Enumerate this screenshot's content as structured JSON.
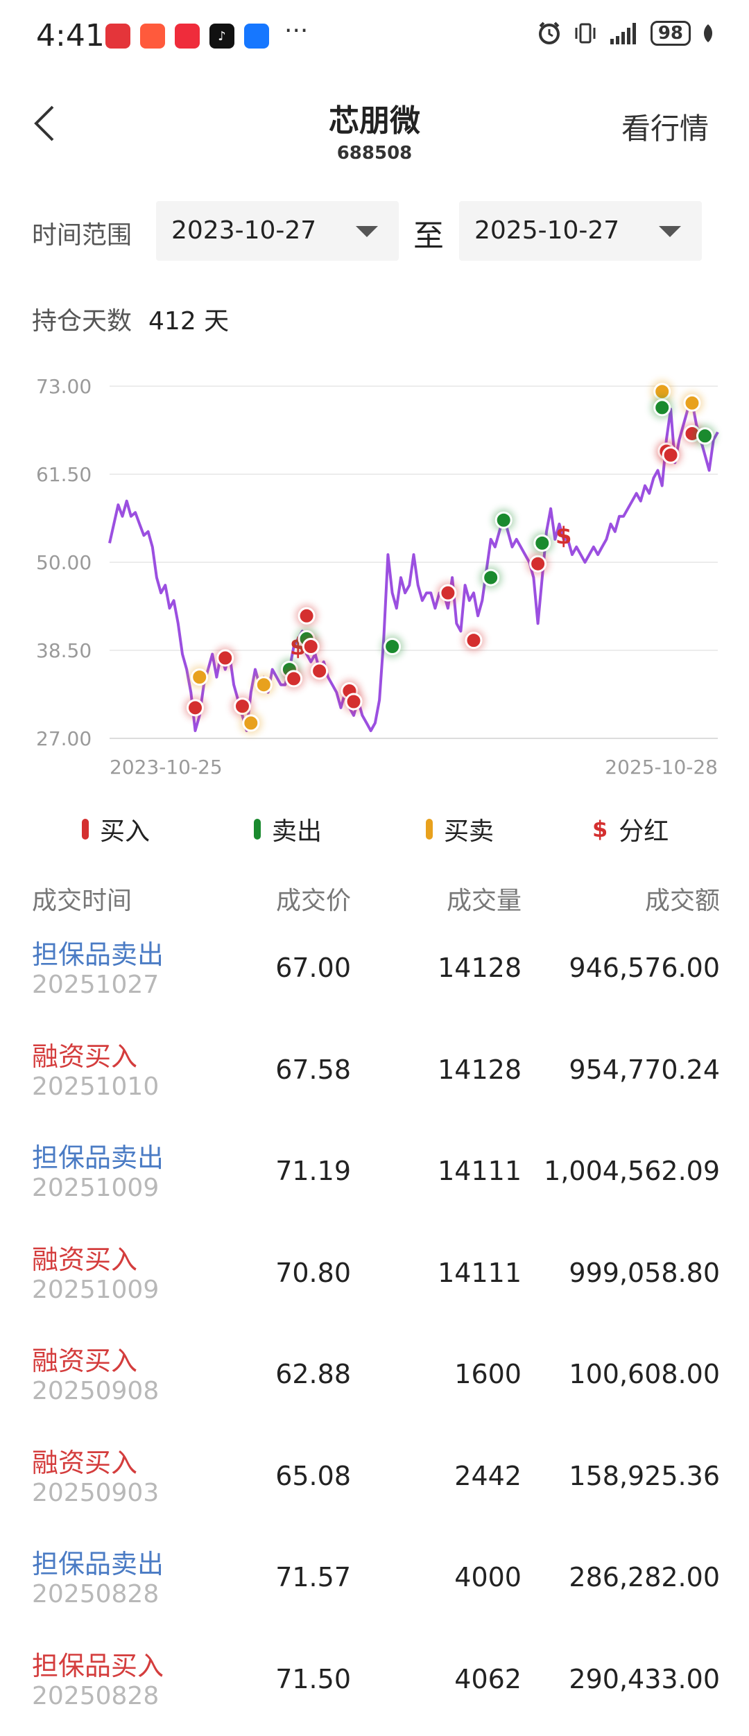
{
  "status_bar": {
    "time": "4:41",
    "battery": "98",
    "app_icons": [
      "huawei-appgallery-icon",
      "game-center-icon",
      "redbook-icon",
      "tiktok-icon",
      "alipay-icon"
    ],
    "more": "···"
  },
  "header": {
    "title": "芯朋微",
    "code": "688508",
    "market_link": "看行情"
  },
  "range": {
    "label": "时间范围",
    "start": "2023-10-27",
    "separator": "至",
    "end": "2025-10-27"
  },
  "holding": {
    "label": "持仓天数",
    "value": "412 天"
  },
  "chart_data": {
    "type": "line",
    "y_ticks": [
      "73.00",
      "61.50",
      "50.00",
      "38.50",
      "27.00"
    ],
    "ylim": [
      27.0,
      73.0
    ],
    "x_tick_labels": [
      "2023-10-25",
      "2025-10-28"
    ],
    "grid": true,
    "line_color": "#9b4fe0",
    "series": [
      {
        "values": [
          52.5,
          55,
          57.5,
          56,
          58,
          56,
          56.5,
          55,
          53.5,
          54,
          52,
          48,
          46,
          47,
          44,
          45,
          42,
          38,
          36,
          33,
          28,
          30,
          34,
          36,
          38,
          35,
          38,
          36,
          38,
          34,
          32,
          30,
          28,
          33,
          36,
          34,
          35,
          33,
          36,
          35,
          34,
          34,
          36,
          39,
          40,
          41,
          38,
          37,
          38,
          36,
          37,
          35,
          34,
          33,
          31,
          33,
          31,
          30,
          32,
          30,
          29,
          28,
          29,
          32,
          40,
          51,
          46,
          44,
          48,
          46,
          47,
          51,
          47,
          45,
          46,
          46,
          44,
          46,
          46,
          44,
          48,
          42,
          41,
          47,
          45,
          46,
          43,
          45,
          49,
          53,
          52,
          54,
          56,
          54,
          52,
          53,
          52,
          51,
          50,
          48,
          42,
          48,
          54,
          57,
          53,
          55,
          53,
          53,
          51,
          52,
          51,
          50,
          51,
          52,
          51,
          52,
          53,
          55,
          54,
          56,
          56,
          57,
          58,
          59,
          58,
          60,
          59,
          61,
          62,
          60,
          66,
          70,
          63,
          66,
          68,
          70,
          71,
          68,
          66,
          64,
          62,
          66,
          67
        ]
      }
    ],
    "markers": [
      {
        "kind": "buy",
        "i": 20,
        "y": 31
      },
      {
        "kind": "both",
        "i": 21,
        "y": 35
      },
      {
        "kind": "buy",
        "i": 27,
        "y": 37.5
      },
      {
        "kind": "buy",
        "i": 31,
        "y": 31.2
      },
      {
        "kind": "both",
        "i": 33,
        "y": 29
      },
      {
        "kind": "both",
        "i": 36,
        "y": 34
      },
      {
        "kind": "sell",
        "i": 42,
        "y": 36
      },
      {
        "kind": "buy",
        "i": 43,
        "y": 34.8
      },
      {
        "kind": "dividend",
        "i": 44,
        "y": 39
      },
      {
        "kind": "sell",
        "i": 46,
        "y": 40
      },
      {
        "kind": "buy",
        "i": 46,
        "y": 43
      },
      {
        "kind": "buy",
        "i": 47,
        "y": 39
      },
      {
        "kind": "buy",
        "i": 49,
        "y": 35.8
      },
      {
        "kind": "buy",
        "i": 56,
        "y": 33.2
      },
      {
        "kind": "buy",
        "i": 57,
        "y": 31.8
      },
      {
        "kind": "sell",
        "i": 66,
        "y": 39
      },
      {
        "kind": "buy",
        "i": 79,
        "y": 46
      },
      {
        "kind": "buy",
        "i": 85,
        "y": 39.8
      },
      {
        "kind": "sell",
        "i": 89,
        "y": 48
      },
      {
        "kind": "sell",
        "i": 92,
        "y": 55.5
      },
      {
        "kind": "buy",
        "i": 100,
        "y": 49.8
      },
      {
        "kind": "sell",
        "i": 101,
        "y": 52.5
      },
      {
        "kind": "dividend",
        "i": 106,
        "y": 53.5
      },
      {
        "kind": "both",
        "i": 129,
        "y": 72.3
      },
      {
        "kind": "sell",
        "i": 129,
        "y": 70.2
      },
      {
        "kind": "buy",
        "i": 130,
        "y": 64.5
      },
      {
        "kind": "buy",
        "i": 131,
        "y": 64
      },
      {
        "kind": "both",
        "i": 136,
        "y": 70.8
      },
      {
        "kind": "buy",
        "i": 136,
        "y": 66.8
      },
      {
        "kind": "sell",
        "i": 139,
        "y": 66.5
      }
    ]
  },
  "legend": [
    {
      "label": "买入",
      "color": "#d42f2f",
      "kind": "buy"
    },
    {
      "label": "卖出",
      "color": "#1a8a2e",
      "kind": "sell"
    },
    {
      "label": "买卖",
      "color": "#e8a11d",
      "kind": "both"
    },
    {
      "label": "分红",
      "color": "#d42f2f",
      "kind": "dividend"
    }
  ],
  "table": {
    "headers": [
      "成交时间",
      "成交价",
      "成交量",
      "成交额"
    ],
    "rows": [
      {
        "type": "担保品卖出",
        "side": "sell",
        "date": "20251027",
        "price": "67.00",
        "volume": "14128",
        "amount": "946,576.00"
      },
      {
        "type": "融资买入",
        "side": "buy",
        "date": "20251010",
        "price": "67.58",
        "volume": "14128",
        "amount": "954,770.24"
      },
      {
        "type": "担保品卖出",
        "side": "sell",
        "date": "20251009",
        "price": "71.19",
        "volume": "14111",
        "amount": "1,004,562.09"
      },
      {
        "type": "融资买入",
        "side": "buy",
        "date": "20251009",
        "price": "70.80",
        "volume": "14111",
        "amount": "999,058.80"
      },
      {
        "type": "融资买入",
        "side": "buy",
        "date": "20250908",
        "price": "62.88",
        "volume": "1600",
        "amount": "100,608.00"
      },
      {
        "type": "融资买入",
        "side": "buy",
        "date": "20250903",
        "price": "65.08",
        "volume": "2442",
        "amount": "158,925.36"
      },
      {
        "type": "担保品卖出",
        "side": "sell",
        "date": "20250828",
        "price": "71.57",
        "volume": "4000",
        "amount": "286,282.00"
      },
      {
        "type": "担保品买入",
        "side": "buy",
        "date": "20250828",
        "price": "71.50",
        "volume": "4062",
        "amount": "290,433.00"
      }
    ]
  }
}
